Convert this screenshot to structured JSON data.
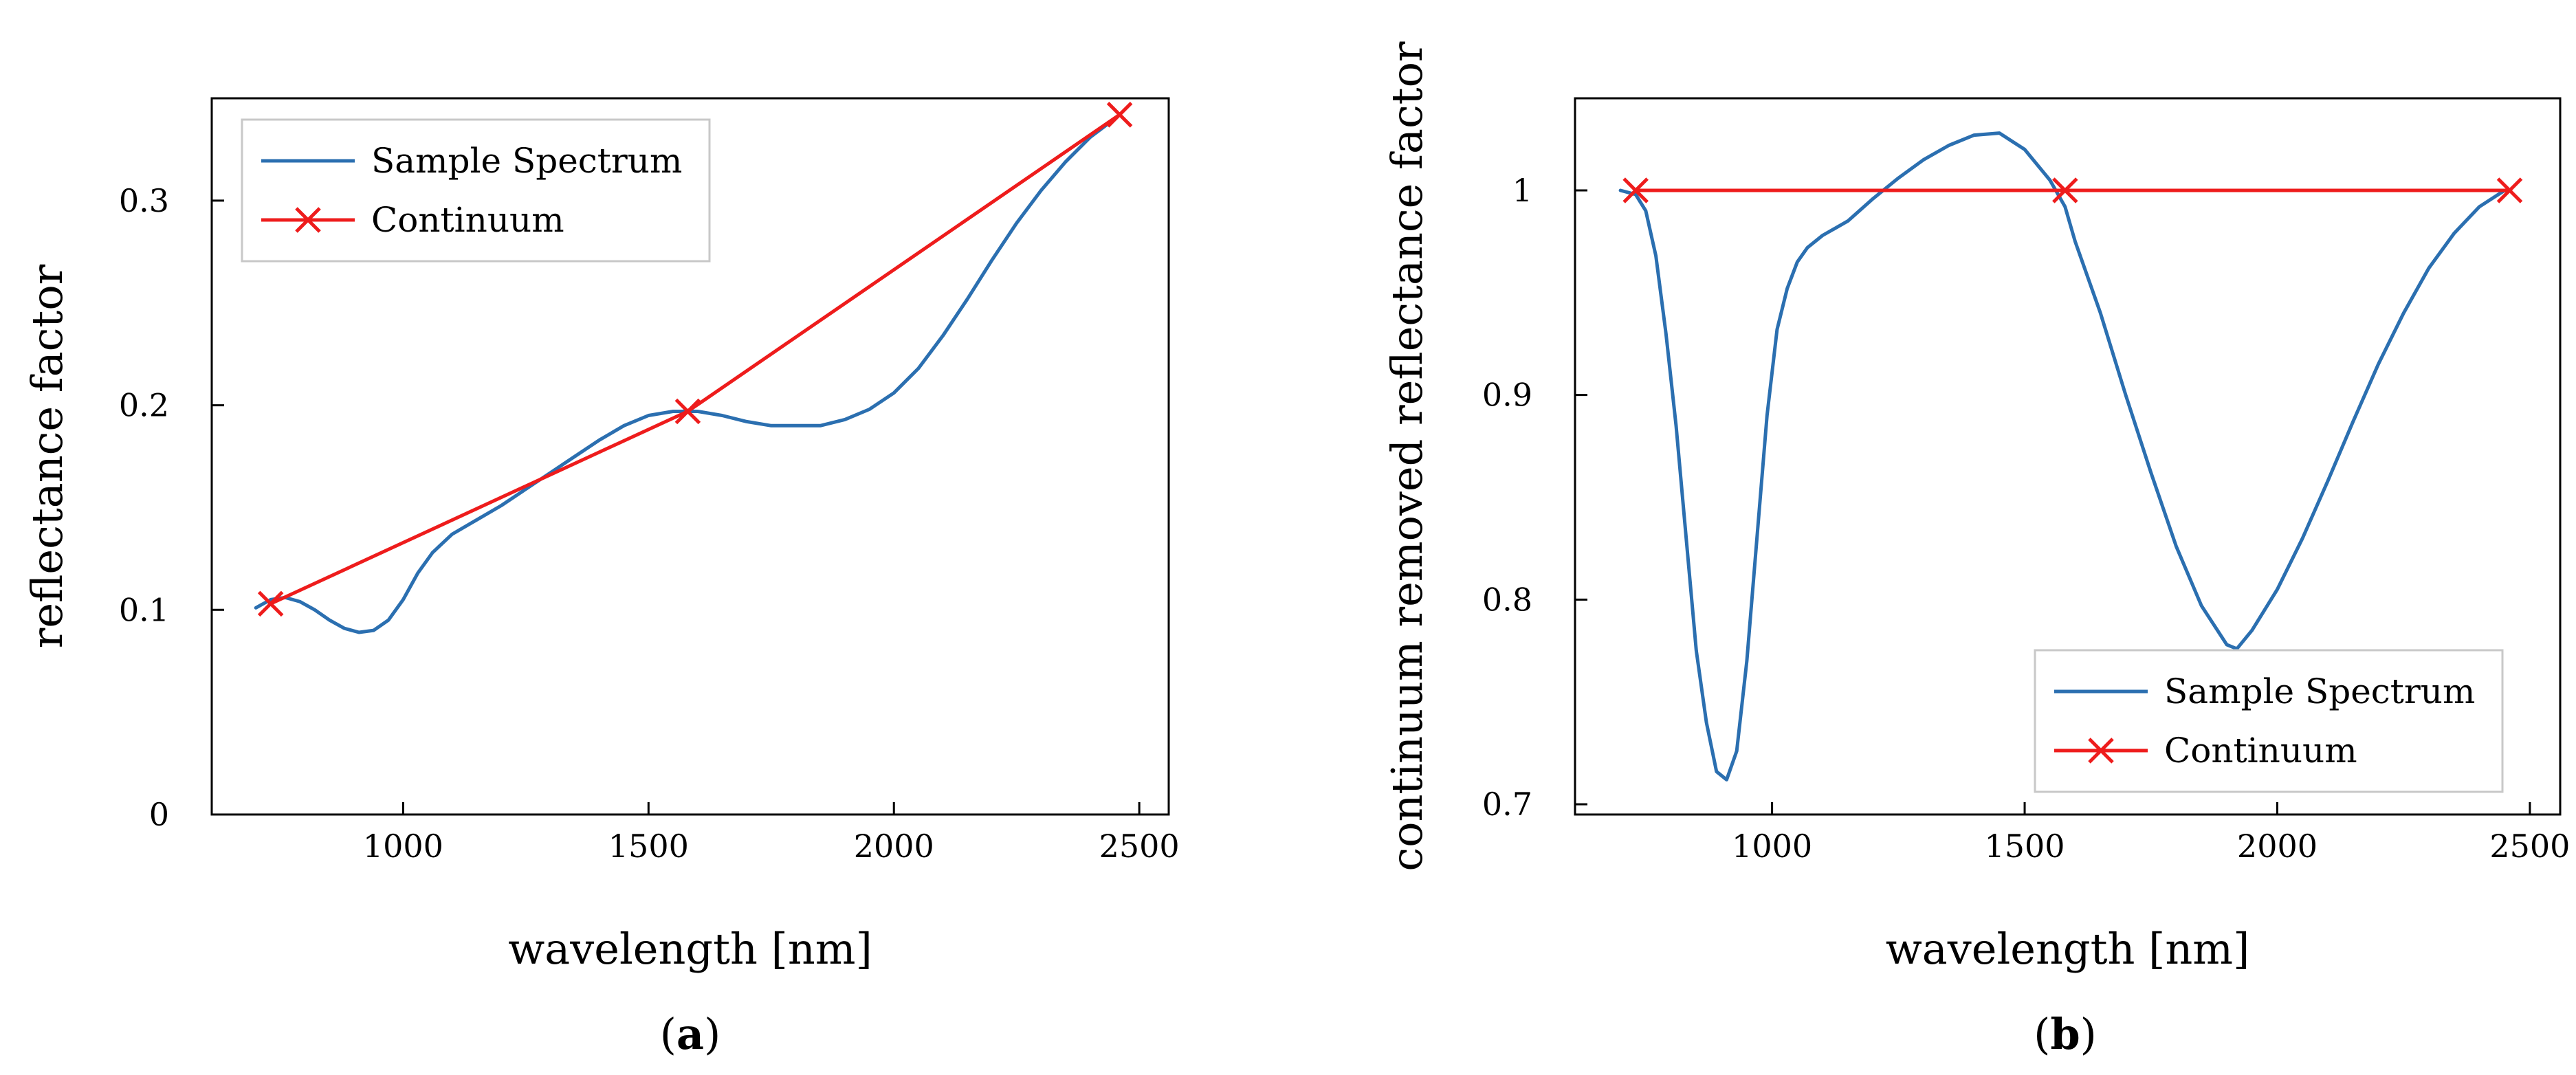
{
  "colors": {
    "spectrum": "#2b6fb0",
    "continuum": "#ee1c1c",
    "axis": "#000000"
  },
  "chart_data": [
    {
      "type": "line",
      "caption": "a",
      "xlabel": "wavelength [nm]",
      "ylabel": "reflectance factor",
      "xlim": [
        610,
        2560
      ],
      "ylim": [
        0,
        0.35
      ],
      "xticks": [
        1000,
        1500,
        2000,
        2500
      ],
      "xtick_labels": [
        "1000",
        "1500",
        "2000",
        "2500"
      ],
      "yticks": [
        0,
        0.1,
        0.2,
        0.3
      ],
      "ytick_labels": [
        "0",
        "0.1",
        "0.2",
        "0.3"
      ],
      "legend_position": "top-left",
      "series": [
        {
          "name": "Sample Spectrum",
          "x": [
            700,
            730,
            760,
            790,
            820,
            850,
            880,
            910,
            940,
            970,
            1000,
            1030,
            1060,
            1100,
            1150,
            1200,
            1250,
            1300,
            1350,
            1400,
            1450,
            1500,
            1550,
            1600,
            1650,
            1700,
            1750,
            1800,
            1850,
            1900,
            1950,
            2000,
            2050,
            2100,
            2150,
            2200,
            2250,
            2300,
            2350,
            2400,
            2450,
            2460
          ],
          "y": [
            0.101,
            0.105,
            0.106,
            0.104,
            0.1,
            0.095,
            0.091,
            0.089,
            0.09,
            0.095,
            0.105,
            0.118,
            0.128,
            0.137,
            0.144,
            0.151,
            0.159,
            0.167,
            0.175,
            0.183,
            0.19,
            0.195,
            0.197,
            0.197,
            0.195,
            0.192,
            0.19,
            0.19,
            0.19,
            0.193,
            0.198,
            0.206,
            0.218,
            0.234,
            0.252,
            0.271,
            0.289,
            0.305,
            0.319,
            0.331,
            0.34,
            0.342
          ]
        },
        {
          "name": "Continuum",
          "x": [
            730,
            1580,
            2460
          ],
          "y": [
            0.103,
            0.197,
            0.342
          ]
        }
      ]
    },
    {
      "type": "line",
      "caption": "b",
      "xlabel": "wavelength [nm]",
      "ylabel": "continuum removed reflectance factor",
      "xlim": [
        610,
        2560
      ],
      "ylim": [
        0.695,
        1.045
      ],
      "xticks": [
        1000,
        1500,
        2000,
        2500
      ],
      "xtick_labels": [
        "1000",
        "1500",
        "2000",
        "2500"
      ],
      "yticks": [
        0.7,
        0.8,
        0.9,
        1.0
      ],
      "ytick_labels": [
        "0.7",
        "0.8",
        "0.9",
        "1"
      ],
      "legend_position": "bottom-right",
      "series": [
        {
          "name": "Sample Spectrum",
          "x": [
            700,
            730,
            750,
            770,
            790,
            810,
            830,
            850,
            870,
            890,
            910,
            930,
            950,
            970,
            990,
            1010,
            1030,
            1050,
            1070,
            1100,
            1150,
            1200,
            1250,
            1300,
            1350,
            1400,
            1450,
            1500,
            1550,
            1580,
            1600,
            1650,
            1700,
            1750,
            1800,
            1850,
            1900,
            1920,
            1950,
            2000,
            2050,
            2100,
            2150,
            2200,
            2250,
            2300,
            2350,
            2400,
            2450
          ],
          "y": [
            1.0,
            0.998,
            0.99,
            0.968,
            0.93,
            0.885,
            0.83,
            0.775,
            0.74,
            0.716,
            0.712,
            0.726,
            0.77,
            0.83,
            0.89,
            0.932,
            0.952,
            0.965,
            0.972,
            0.978,
            0.985,
            0.996,
            1.006,
            1.015,
            1.022,
            1.027,
            1.028,
            1.02,
            1.005,
            0.992,
            0.975,
            0.94,
            0.9,
            0.862,
            0.826,
            0.797,
            0.778,
            0.776,
            0.785,
            0.805,
            0.83,
            0.858,
            0.887,
            0.915,
            0.94,
            0.962,
            0.979,
            0.992,
            1.0
          ]
        },
        {
          "name": "Continuum",
          "x": [
            730,
            1580,
            2460
          ],
          "y": [
            1.0,
            1.0,
            1.0
          ]
        }
      ]
    }
  ]
}
